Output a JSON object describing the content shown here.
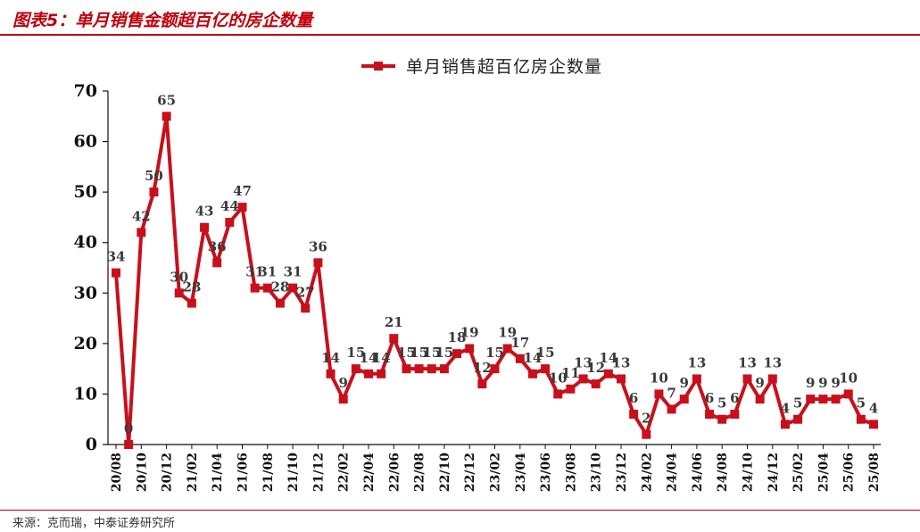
{
  "figure": {
    "title": "图表5：单月销售金额超百亿的房企数量",
    "source": "来源：克而瑞，中泰证券研究所"
  },
  "colors": {
    "accent": "#c0000b",
    "series": "#c8101b"
  },
  "chart_data": {
    "type": "line",
    "title": "",
    "xlabel": "",
    "ylabel": "",
    "ylim": [
      0,
      70
    ],
    "yticks": [
      0,
      10,
      20,
      30,
      40,
      50,
      60,
      70
    ],
    "grid": false,
    "legend_position": "top-center",
    "x": [
      "20/08",
      "20/09",
      "20/10",
      "20/11",
      "20/12",
      "21/01",
      "21/02",
      "21/03",
      "21/04",
      "21/05",
      "21/06",
      "21/07",
      "21/08",
      "21/09",
      "21/10",
      "21/11",
      "21/12",
      "22/01",
      "22/02",
      "22/03",
      "22/04",
      "22/05",
      "22/06",
      "22/07",
      "22/08",
      "22/09",
      "22/10",
      "22/11",
      "22/12",
      "23/01",
      "23/02",
      "23/03",
      "23/04",
      "23/05",
      "23/06",
      "23/07",
      "23/08",
      "23/09",
      "23/10",
      "23/11",
      "23/12",
      "24/01",
      "24/02",
      "24/03",
      "24/04",
      "24/05",
      "24/06",
      "24/07",
      "24/08",
      "24/09",
      "24/10",
      "24/11",
      "24/12",
      "25/01",
      "25/02",
      "25/03",
      "25/04",
      "25/05",
      "25/06",
      "25/07",
      "25/08"
    ],
    "x_tick_labels": [
      "20/08",
      "20/10",
      "20/12",
      "21/02",
      "21/04",
      "21/06",
      "21/08",
      "21/10",
      "21/12",
      "22/02",
      "22/04",
      "22/06",
      "22/08",
      "22/10",
      "22/12",
      "23/02",
      "23/04",
      "23/06",
      "23/08",
      "23/10",
      "23/12",
      "24/02",
      "24/04",
      "24/06",
      "24/08",
      "24/10",
      "24/12",
      "25/02",
      "25/04",
      "25/06",
      "25/08"
    ],
    "series": [
      {
        "name": "单月销售超百亿房企数量",
        "values": [
          34,
          0,
          42,
          50,
          65,
          30,
          28,
          43,
          36,
          44,
          47,
          31,
          31,
          28,
          31,
          27,
          36,
          14,
          9,
          15,
          14,
          14,
          21,
          15,
          15,
          15,
          15,
          18,
          19,
          12,
          15,
          19,
          17,
          14,
          15,
          10,
          11,
          13,
          12,
          14,
          13,
          6,
          2,
          10,
          7,
          9,
          13,
          6,
          5,
          6,
          13,
          9,
          13,
          4,
          5,
          9,
          9,
          9,
          10,
          5,
          4
        ]
      }
    ]
  }
}
